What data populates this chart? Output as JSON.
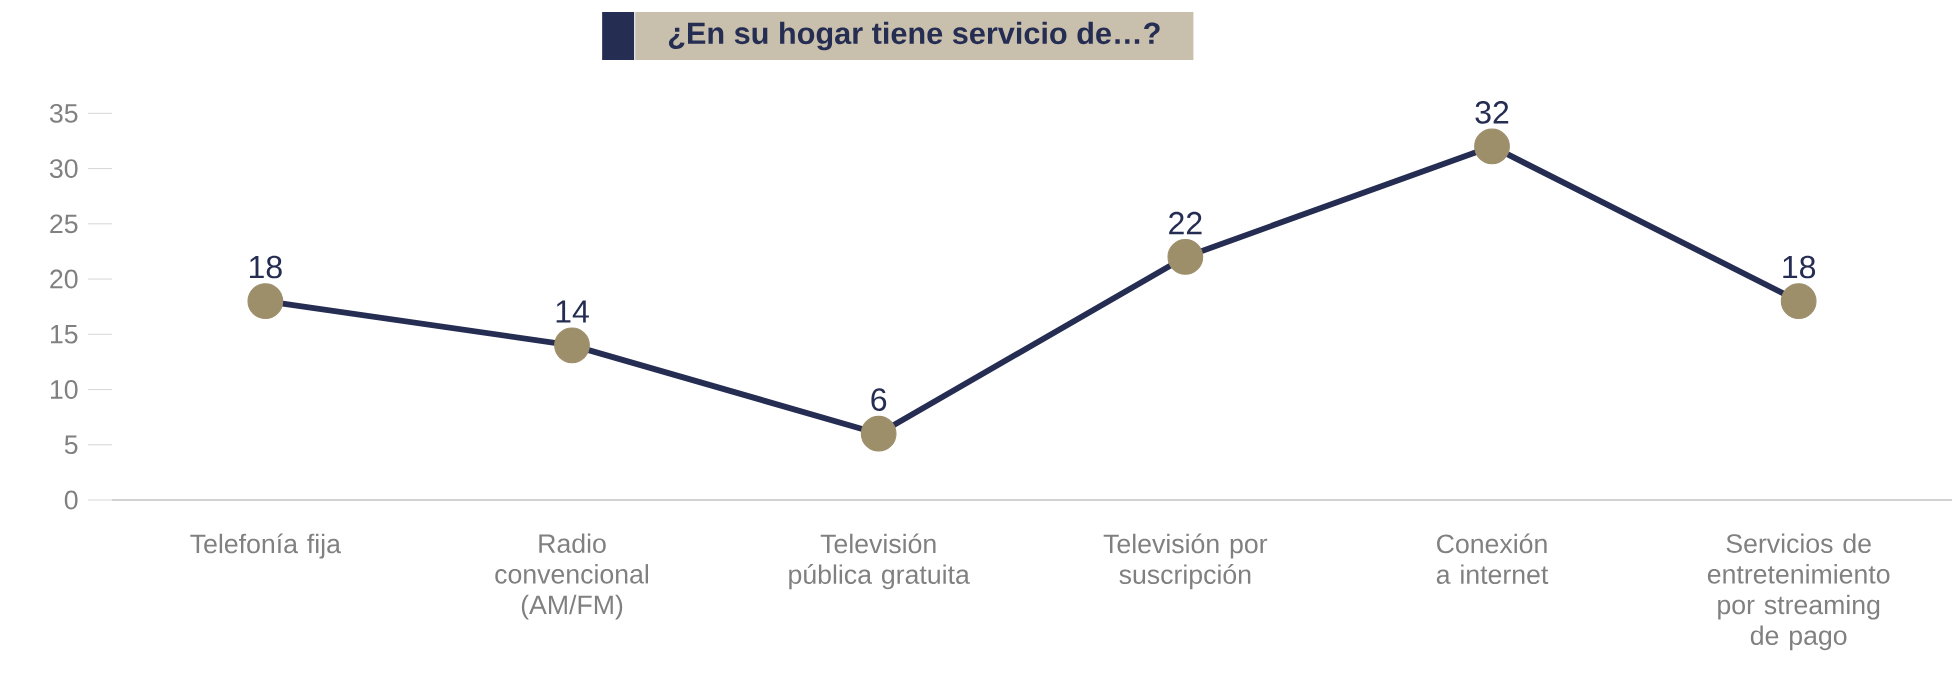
{
  "chart_data": {
    "type": "line",
    "title": "¿En su hogar tiene servicio de…?",
    "categories": [
      "Telefonía fija",
      "Radio convencional (AM/FM)",
      "Televisión pública gratuita",
      "Televisión por suscripción",
      "Conexión a internet",
      "Servicios de entretenimiento por streaming de pago"
    ],
    "series": [
      {
        "color": "#252d52",
        "colors": [
          "#9e8f6b",
          "#9e8f6b",
          "#9e8f6b",
          "#9e8f6b",
          "#9e8f6b",
          "#9e8f6b"
        ],
        "values": [
          18,
          14,
          6,
          22,
          32,
          18
        ]
      }
    ],
    "marker": "circle",
    "line_style": "solid",
    "ylim": [
      0,
      35
    ],
    "yticks": [
      0,
      5,
      10,
      15,
      20,
      25,
      30,
      35
    ],
    "data_labels": true,
    "grid": false
  }
}
